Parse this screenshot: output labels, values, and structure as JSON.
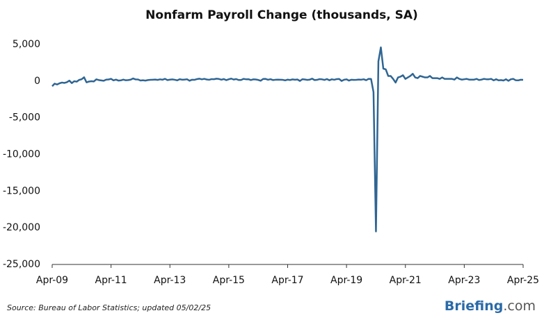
{
  "chart_data": {
    "type": "line",
    "title": "Nonfarm Payroll Change (thousands, SA)",
    "source": "Source: Bureau of Labor Statistics; updated 05/02/25",
    "brand_name": "Briefing",
    "brand_suffix": ".com",
    "negative_tick_color": "#cc0000",
    "ylim": [
      -25000,
      5000
    ],
    "yticks": [
      {
        "value": -25000,
        "label": "-25,000"
      },
      {
        "value": -20000,
        "label": "-20,000"
      },
      {
        "value": -15000,
        "label": "-15,000"
      },
      {
        "value": -10000,
        "label": "-10,000"
      },
      {
        "value": -5000,
        "label": "-5,000"
      },
      0,
      {
        "value": 5000,
        "label": "5,000"
      }
    ],
    "xticks": [
      {
        "value": "2009-04",
        "label": "Apr-09"
      },
      {
        "value": "2011-04",
        "label": "Apr-11"
      },
      {
        "value": "2013-04",
        "label": "Apr-13"
      },
      {
        "value": "2015-04",
        "label": "Apr-15"
      },
      {
        "value": "2017-04",
        "label": "Apr-17"
      },
      {
        "value": "2019-04",
        "label": "Apr-19"
      },
      {
        "value": "2021-04",
        "label": "Apr-21"
      },
      {
        "value": "2023-04",
        "label": "Apr-23"
      },
      {
        "value": "2025-04",
        "label": "Apr-25"
      }
    ],
    "x": [
      "2009-04",
      "2009-05",
      "2009-06",
      "2009-07",
      "2009-08",
      "2009-09",
      "2009-10",
      "2009-11",
      "2009-12",
      "2010-01",
      "2010-02",
      "2010-03",
      "2010-04",
      "2010-05",
      "2010-06",
      "2010-07",
      "2010-08",
      "2010-09",
      "2010-10",
      "2010-11",
      "2010-12",
      "2011-01",
      "2011-02",
      "2011-03",
      "2011-04",
      "2011-05",
      "2011-06",
      "2011-07",
      "2011-08",
      "2011-09",
      "2011-10",
      "2011-11",
      "2011-12",
      "2012-01",
      "2012-02",
      "2012-03",
      "2012-04",
      "2012-05",
      "2012-06",
      "2012-07",
      "2012-08",
      "2012-09",
      "2012-10",
      "2012-11",
      "2012-12",
      "2013-01",
      "2013-02",
      "2013-03",
      "2013-04",
      "2013-05",
      "2013-06",
      "2013-07",
      "2013-08",
      "2013-09",
      "2013-10",
      "2013-11",
      "2013-12",
      "2014-01",
      "2014-02",
      "2014-03",
      "2014-04",
      "2014-05",
      "2014-06",
      "2014-07",
      "2014-08",
      "2014-09",
      "2014-10",
      "2014-11",
      "2014-12",
      "2015-01",
      "2015-02",
      "2015-03",
      "2015-04",
      "2015-05",
      "2015-06",
      "2015-07",
      "2015-08",
      "2015-09",
      "2015-10",
      "2015-11",
      "2015-12",
      "2016-01",
      "2016-02",
      "2016-03",
      "2016-04",
      "2016-05",
      "2016-06",
      "2016-07",
      "2016-08",
      "2016-09",
      "2016-10",
      "2016-11",
      "2016-12",
      "2017-01",
      "2017-02",
      "2017-03",
      "2017-04",
      "2017-05",
      "2017-06",
      "2017-07",
      "2017-08",
      "2017-09",
      "2017-10",
      "2017-11",
      "2017-12",
      "2018-01",
      "2018-02",
      "2018-03",
      "2018-04",
      "2018-05",
      "2018-06",
      "2018-07",
      "2018-08",
      "2018-09",
      "2018-10",
      "2018-11",
      "2018-12",
      "2019-01",
      "2019-02",
      "2019-03",
      "2019-04",
      "2019-05",
      "2019-06",
      "2019-07",
      "2019-08",
      "2019-09",
      "2019-10",
      "2019-11",
      "2019-12",
      "2020-01",
      "2020-02",
      "2020-03",
      "2020-04",
      "2020-05",
      "2020-06",
      "2020-07",
      "2020-08",
      "2020-09",
      "2020-10",
      "2020-11",
      "2020-12",
      "2021-01",
      "2021-02",
      "2021-03",
      "2021-04",
      "2021-05",
      "2021-06",
      "2021-07",
      "2021-08",
      "2021-09",
      "2021-10",
      "2021-11",
      "2021-12",
      "2022-01",
      "2022-02",
      "2022-03",
      "2022-04",
      "2022-05",
      "2022-06",
      "2022-07",
      "2022-08",
      "2022-09",
      "2022-10",
      "2022-11",
      "2022-12",
      "2023-01",
      "2023-02",
      "2023-03",
      "2023-04",
      "2023-05",
      "2023-06",
      "2023-07",
      "2023-08",
      "2023-09",
      "2023-10",
      "2023-11",
      "2023-12",
      "2024-01",
      "2024-02",
      "2024-03",
      "2024-04",
      "2024-05",
      "2024-06",
      "2024-07",
      "2024-08",
      "2024-09",
      "2024-10",
      "2024-11",
      "2024-12",
      "2025-01",
      "2025-02",
      "2025-03",
      "2025-04"
    ],
    "series": [
      {
        "color": "#2f6593",
        "values": [
          -700,
          -350,
          -460,
          -300,
          -200,
          -250,
          -150,
          60,
          -270,
          -20,
          -80,
          160,
          250,
          520,
          -170,
          -60,
          -20,
          -50,
          240,
          140,
          90,
          40,
          200,
          220,
          310,
          100,
          200,
          70,
          100,
          200,
          110,
          140,
          200,
          360,
          230,
          220,
          80,
          110,
          70,
          140,
          170,
          190,
          210,
          160,
          240,
          190,
          310,
          140,
          200,
          230,
          180,
          100,
          260,
          190,
          210,
          250,
          50,
          190,
          170,
          270,
          330,
          240,
          310,
          220,
          180,
          270,
          260,
          330,
          290,
          190,
          280,
          130,
          250,
          340,
          210,
          280,
          150,
          150,
          300,
          250,
          260,
          140,
          240,
          220,
          160,
          50,
          290,
          300,
          180,
          260,
          140,
          180,
          200,
          190,
          170,
          100,
          200,
          150,
          230,
          190,
          220,
          20,
          260,
          220,
          160,
          200,
          330,
          140,
          170,
          270,
          240,
          160,
          280,
          110,
          250,
          180,
          270,
          290,
          20,
          190,
          240,
          70,
          190,
          160,
          170,
          210,
          190,
          250,
          120,
          300,
          290,
          -1500,
          -20500,
          2700,
          4600,
          1700,
          1600,
          700,
          700,
          300,
          -200,
          500,
          600,
          800,
          300,
          500,
          700,
          1000,
          500,
          400,
          700,
          600,
          500,
          500,
          700,
          400,
          400,
          400,
          300,
          500,
          300,
          300,
          300,
          300,
          200,
          500,
          300,
          200,
          250,
          300,
          200,
          200,
          200,
          300,
          150,
          200,
          300,
          250,
          250,
          300,
          100,
          250,
          100,
          140,
          80,
          250,
          40,
          250,
          300,
          110,
          100,
          185,
          177
        ]
      }
    ]
  }
}
